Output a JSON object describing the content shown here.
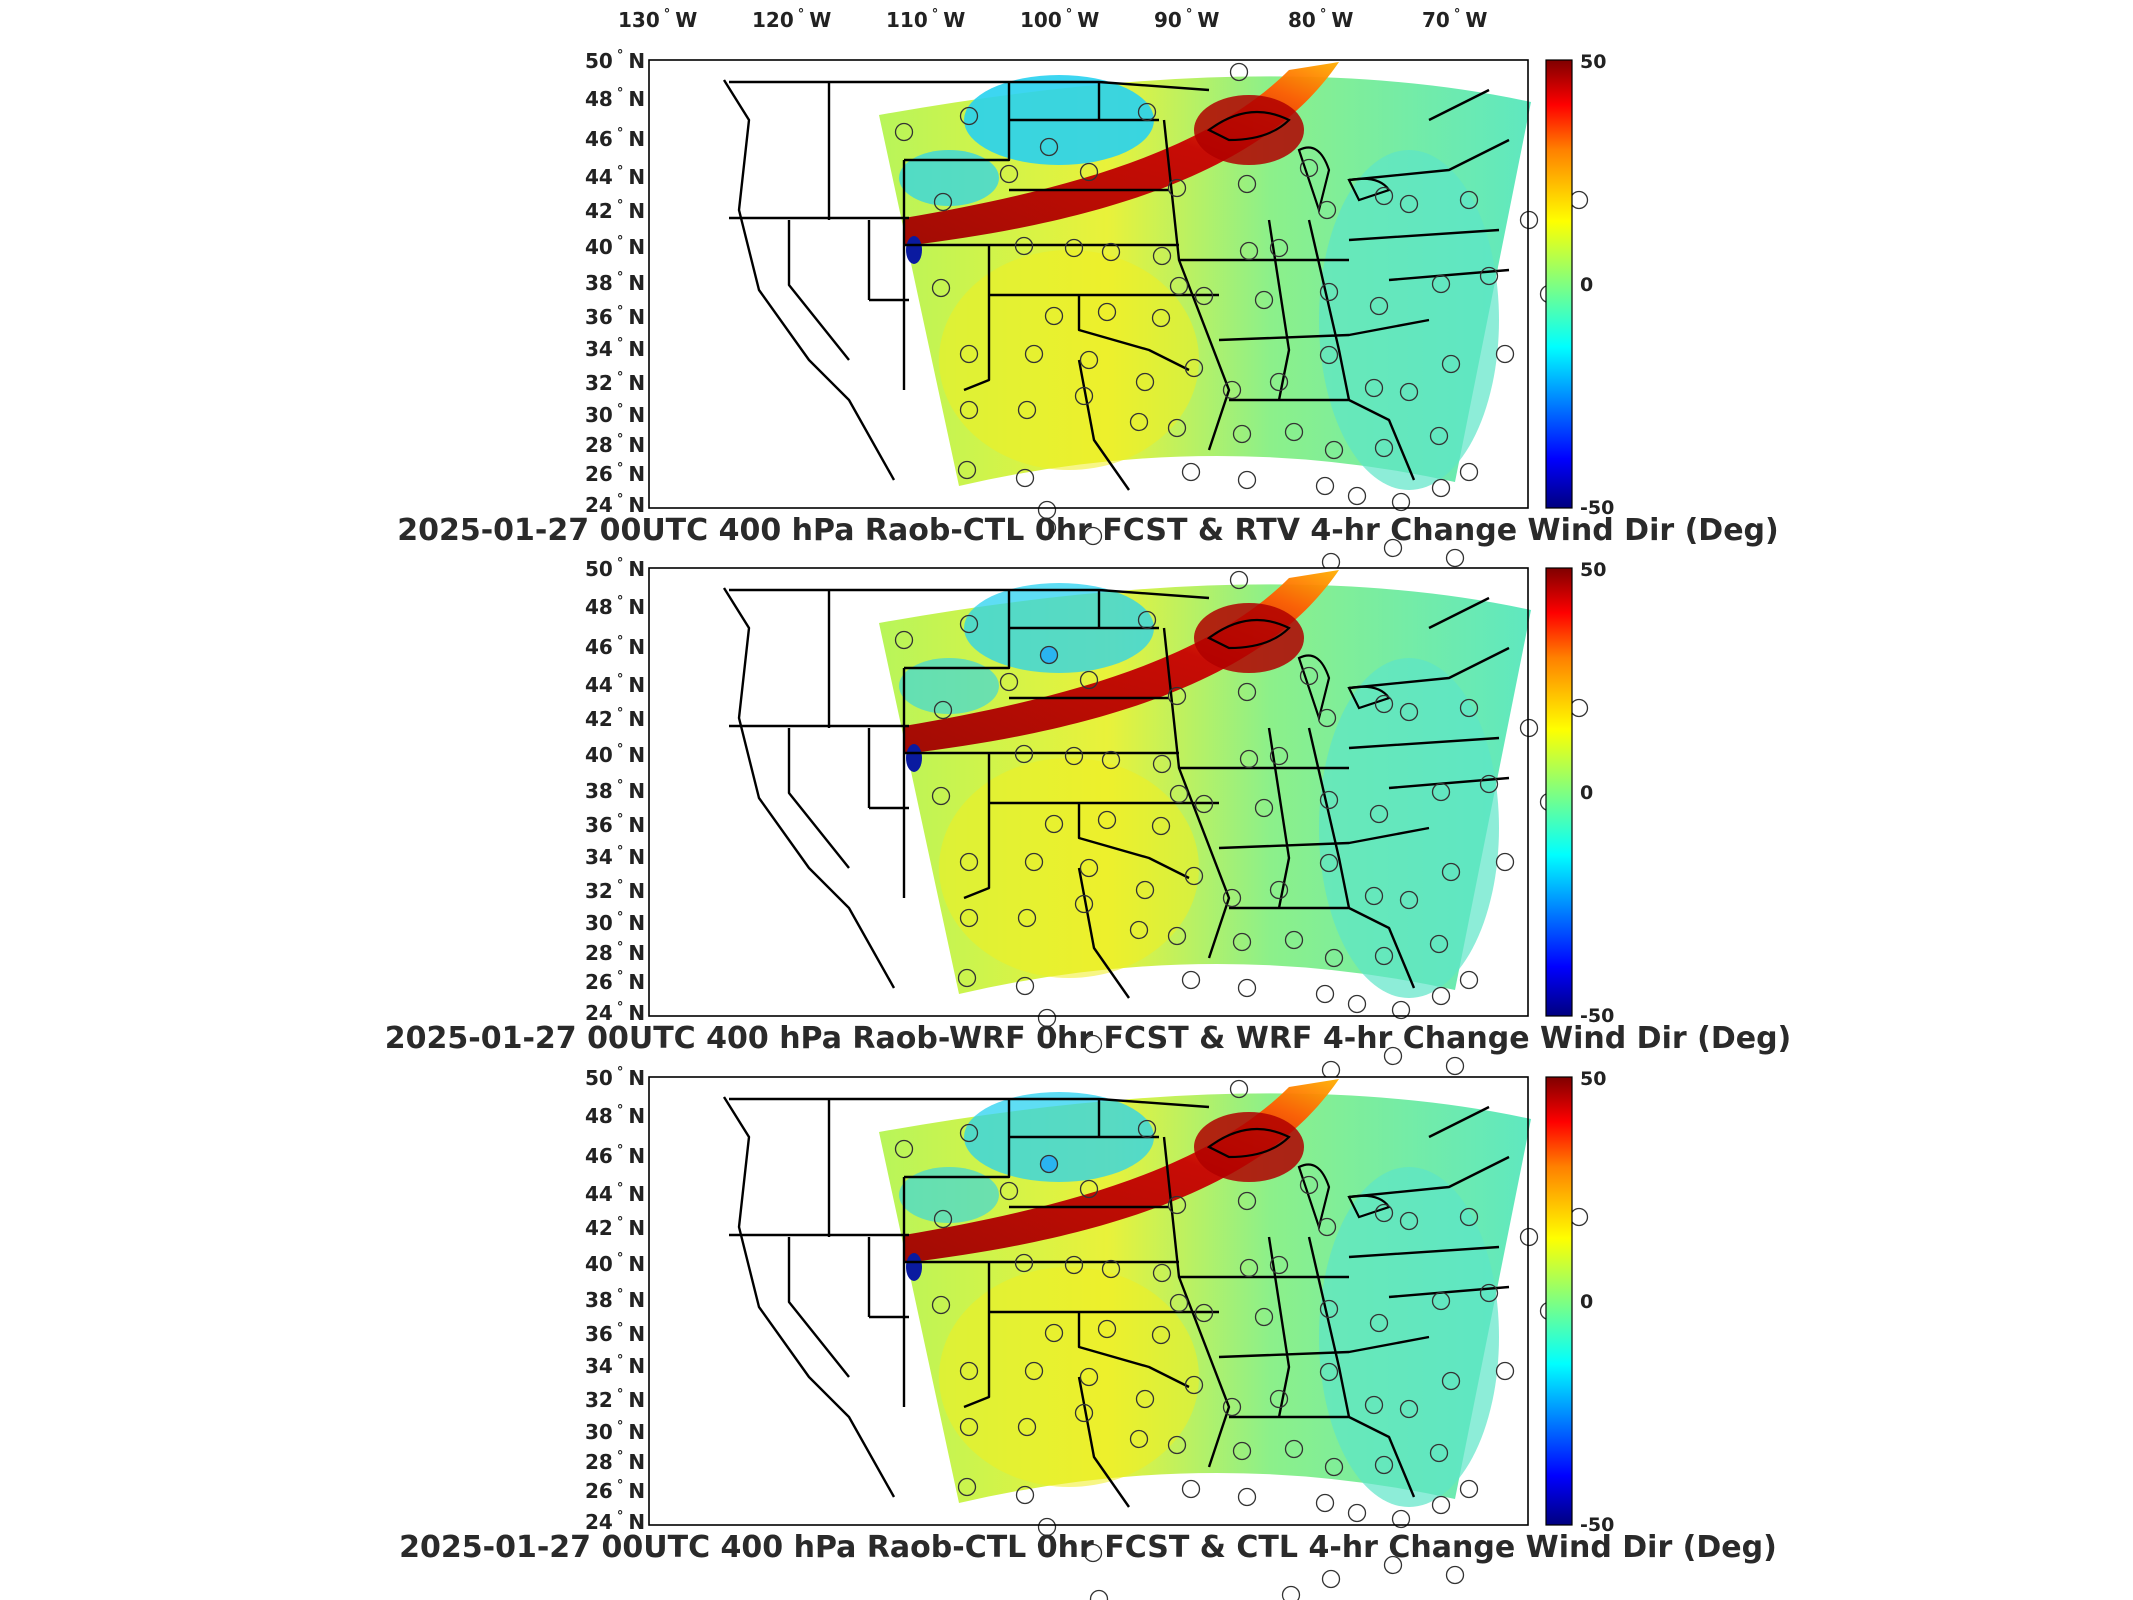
{
  "figure": {
    "lon_labels": [
      {
        "deg": "130",
        "hem": "W"
      },
      {
        "deg": "120",
        "hem": "W"
      },
      {
        "deg": "110",
        "hem": "W"
      },
      {
        "deg": "100",
        "hem": "W"
      },
      {
        "deg": "90",
        "hem": "W"
      },
      {
        "deg": "80",
        "hem": "W"
      },
      {
        "deg": "70",
        "hem": "W"
      }
    ],
    "lat_labels": [
      {
        "deg": "50",
        "hem": "N"
      },
      {
        "deg": "48",
        "hem": "N"
      },
      {
        "deg": "46",
        "hem": "N"
      },
      {
        "deg": "44",
        "hem": "N"
      },
      {
        "deg": "42",
        "hem": "N"
      },
      {
        "deg": "40",
        "hem": "N"
      },
      {
        "deg": "38",
        "hem": "N"
      },
      {
        "deg": "36",
        "hem": "N"
      },
      {
        "deg": "34",
        "hem": "N"
      },
      {
        "deg": "32",
        "hem": "N"
      },
      {
        "deg": "30",
        "hem": "N"
      },
      {
        "deg": "28",
        "hem": "N"
      },
      {
        "deg": "26",
        "hem": "N"
      },
      {
        "deg": "24",
        "hem": "N"
      }
    ],
    "colorbar": {
      "max": "50",
      "mid": "0",
      "min": "-50",
      "colors": [
        "#00007f",
        "#0000ff",
        "#0080ff",
        "#00ffff",
        "#80ff80",
        "#ffff00",
        "#ff8000",
        "#ff0000",
        "#7f0000"
      ]
    },
    "panels": [
      {
        "title": "2025-01-27 00UTC 400 hPa Raob-CTL 0hr FCST & RTV 4-hr Change Wind Dir (Deg)"
      },
      {
        "title": "2025-01-27 00UTC 400 hPa Raob-WRF 0hr FCST & WRF 4-hr Change Wind Dir (Deg)"
      },
      {
        "title": "2025-01-27 00UTC 400 hPa Raob-CTL 0hr FCST & CTL 4-hr Change Wind Dir (Deg)"
      }
    ]
  }
}
